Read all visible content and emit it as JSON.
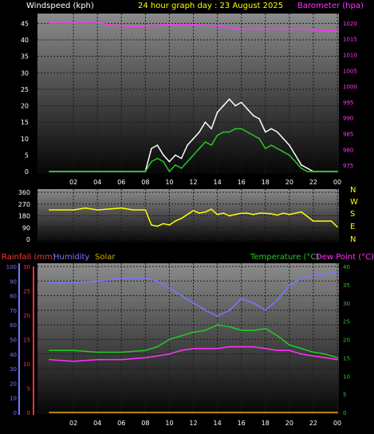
{
  "title": "24 hour graph day : 23 August 2025",
  "colors": {
    "wind_label": "#ffffff",
    "gust": "#ffffff",
    "wind_avg": "#22cc22",
    "baro": "#ff33ff",
    "title": "#ffff00",
    "dir": "#ffff00",
    "rain": "#ff3333",
    "humidity": "#7777ff",
    "solar": "#ccaa00",
    "temp": "#22cc22",
    "dew": "#ff33ff",
    "tick_text": "#ffffff",
    "right_tick_top": "#ff33ff",
    "right_tick_bottom": "#22cc22"
  },
  "x_tick_labels": [
    "02",
    "04",
    "06",
    "08",
    "10",
    "12",
    "14",
    "16",
    "18",
    "20",
    "22",
    "00"
  ],
  "chart_data": [
    {
      "type": "line",
      "name": "wind-baro",
      "ylabel_left": "Windspeed (kph)",
      "ylabel_right": "Barometer (hpa)",
      "y_left_ticks": [
        "0",
        "5",
        "10",
        "15",
        "20",
        "25",
        "30",
        "35",
        "40",
        "45"
      ],
      "y_left_lim": [
        0,
        48
      ],
      "y_right_ticks": [
        "975",
        "980",
        "985",
        "990",
        "995",
        "1000",
        "1005",
        "1010",
        "1015",
        "1020"
      ],
      "y_right_lim": [
        973,
        1023
      ],
      "x": [
        0,
        2,
        4,
        6,
        8,
        8.5,
        9,
        9.5,
        10,
        10.5,
        11,
        11.5,
        12,
        12.5,
        13,
        13.5,
        14,
        14.5,
        15,
        15.5,
        16,
        16.5,
        17,
        17.5,
        18,
        18.5,
        19,
        19.5,
        20,
        20.5,
        21,
        21.5,
        22,
        24
      ],
      "series": [
        {
          "name": "gust",
          "values": [
            0,
            0,
            0,
            0,
            0,
            7,
            8,
            5,
            3,
            5,
            4,
            8,
            10,
            12,
            15,
            13,
            18,
            20,
            22,
            20,
            21,
            19,
            17,
            16,
            12,
            13,
            12,
            10,
            8,
            5,
            2,
            1,
            0,
            0
          ]
        },
        {
          "name": "wind_avg",
          "values": [
            0,
            0,
            0,
            0,
            0,
            3,
            4,
            3,
            0,
            2,
            1,
            3,
            5,
            7,
            9,
            8,
            11,
            12,
            12,
            13,
            13,
            12,
            11,
            10,
            7,
            8,
            7,
            6,
            5,
            3,
            1,
            0,
            0,
            0
          ]
        },
        {
          "name": "barometer",
          "values": [
            1020,
            1020,
            1020,
            1019,
            1019,
            1019.2,
            1019.3,
            1019.4,
            1019.5,
            1019.5,
            1019.5,
            1019.5,
            1019.5,
            1019.4,
            1019.3,
            1019.2,
            1019,
            1018.8,
            1018.5,
            1018.2,
            1018,
            1018,
            1018,
            1018,
            1018,
            1018,
            1018,
            1018,
            1018,
            1018,
            1018,
            1018,
            1017.7,
            1017.5
          ]
        }
      ]
    },
    {
      "type": "line",
      "name": "wind-direction",
      "y_left_ticks": [
        "0",
        "90",
        "180",
        "270",
        "360"
      ],
      "y_lim": [
        0,
        360
      ],
      "y_right_labels": [
        "N",
        "W",
        "S",
        "E",
        "N"
      ],
      "x": [
        0,
        2,
        3,
        4,
        6,
        7,
        8,
        8.5,
        9,
        9.5,
        10,
        10.5,
        11,
        11.5,
        12,
        12.5,
        13,
        13.5,
        14,
        14.5,
        15,
        15.5,
        16,
        16.5,
        17,
        17.5,
        18,
        18.5,
        19,
        19.5,
        20,
        20.5,
        21,
        22,
        23.5,
        24
      ],
      "series": [
        {
          "name": "direction",
          "values": [
            225,
            225,
            240,
            225,
            240,
            225,
            225,
            110,
            100,
            120,
            110,
            140,
            160,
            190,
            220,
            200,
            210,
            230,
            190,
            200,
            180,
            190,
            200,
            200,
            190,
            200,
            200,
            195,
            185,
            200,
            190,
            200,
            210,
            140,
            140,
            95
          ]
        }
      ]
    },
    {
      "type": "line",
      "name": "humidity-temp",
      "ylabels": [
        "Rainfall (mm)",
        "Humidity",
        "Solar",
        "Temperature (°C)",
        "Dew Point (°C)"
      ],
      "y_humidity_ticks": [
        "0",
        "10",
        "20",
        "30",
        "40",
        "50",
        "60",
        "70",
        "80",
        "90",
        "100"
      ],
      "y_humidity_lim": [
        0,
        100
      ],
      "y_rain_ticks": [
        "0",
        "5",
        "10",
        "15",
        "20",
        "25",
        "30"
      ],
      "y_rain_lim": [
        0,
        30
      ],
      "y_right_ticks": [
        "0",
        "5",
        "10",
        "15",
        "20",
        "25",
        "30",
        "35",
        "40"
      ],
      "y_right_lim": [
        0,
        40
      ],
      "x": [
        0,
        2,
        4,
        6,
        8,
        9,
        10,
        11,
        12,
        13,
        14,
        15,
        16,
        17,
        18,
        19,
        20,
        21,
        22,
        23,
        24
      ],
      "series": [
        {
          "name": "humidity",
          "values": [
            89,
            89,
            90,
            92,
            92,
            90,
            85,
            80,
            75,
            70,
            66,
            70,
            78,
            75,
            70,
            77,
            87,
            92,
            94,
            95,
            96
          ]
        },
        {
          "name": "temperature",
          "values": [
            17,
            17,
            16.5,
            16.5,
            17,
            18,
            20,
            21,
            22,
            22.5,
            24,
            23.5,
            22.5,
            22.5,
            23,
            21,
            18.5,
            17.5,
            16.5,
            16,
            15
          ]
        },
        {
          "name": "dew_point",
          "values": [
            14.5,
            14,
            14.5,
            14.5,
            15,
            15.5,
            16,
            17,
            17.5,
            17.5,
            17.5,
            18,
            18,
            18,
            17.5,
            17,
            17,
            16,
            15.5,
            15,
            14.5
          ]
        },
        {
          "name": "rainfall",
          "values": [
            0,
            0,
            0,
            0,
            0,
            0,
            0,
            0,
            0,
            0,
            0,
            0,
            0,
            0,
            0,
            0,
            0,
            0,
            0,
            0,
            0
          ]
        },
        {
          "name": "solar",
          "values": [
            0,
            0,
            0,
            0,
            0,
            0,
            0,
            0,
            0,
            0,
            0,
            0,
            0,
            0,
            0,
            0,
            0,
            0,
            0,
            0,
            0
          ]
        }
      ]
    }
  ]
}
